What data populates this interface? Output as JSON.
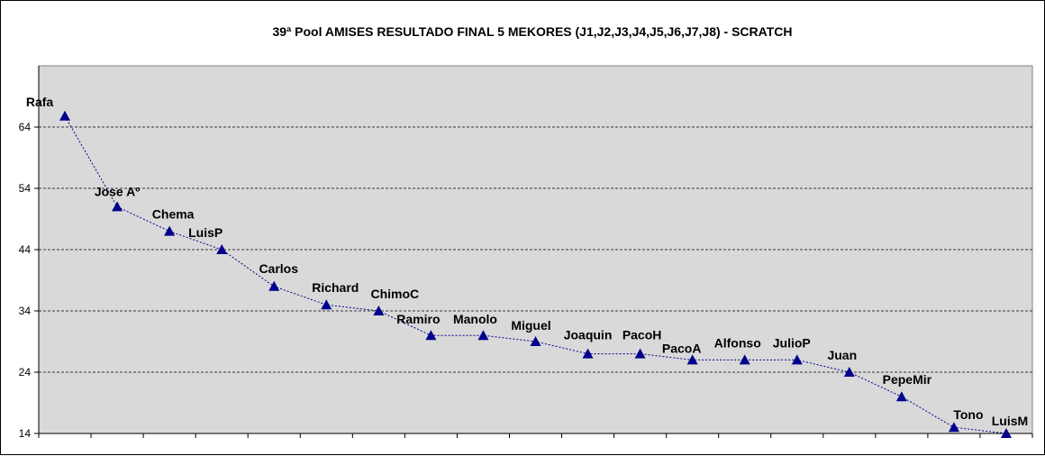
{
  "chart_data": {
    "type": "line",
    "title": "39ª Pool AMISES RESULTADO FINAL 5 MEKORES (J1,J2,J3,J4,J5,J6,J7,J8)  - SCRATCH",
    "xlabel": "",
    "ylabel": "",
    "ylim": [
      14,
      74
    ],
    "yticks": [
      14,
      24,
      34,
      44,
      54,
      64
    ],
    "grid": true,
    "legend": "none",
    "colors": {
      "plot_background": "#d9d9d9",
      "line": "#00008b",
      "marker": "#00008b",
      "gridline": "#000000"
    },
    "series": [
      {
        "categories": [
          "Rafa",
          "Jose Aº",
          "Chema",
          "LuisP",
          "Carlos",
          "Richard",
          "ChimoC",
          "Ramiro",
          "Manolo",
          "Miguel",
          "Joaquin",
          "PacoH",
          "PacoA",
          "Alfonso",
          "JulioP",
          "Juan",
          "PepeMir",
          "Tono",
          "LuisM"
        ],
        "values": [
          65.8,
          51,
          47,
          44,
          38,
          35,
          34,
          30,
          30,
          29,
          27,
          27,
          26,
          26,
          26,
          24,
          20,
          15,
          14
        ]
      }
    ]
  }
}
